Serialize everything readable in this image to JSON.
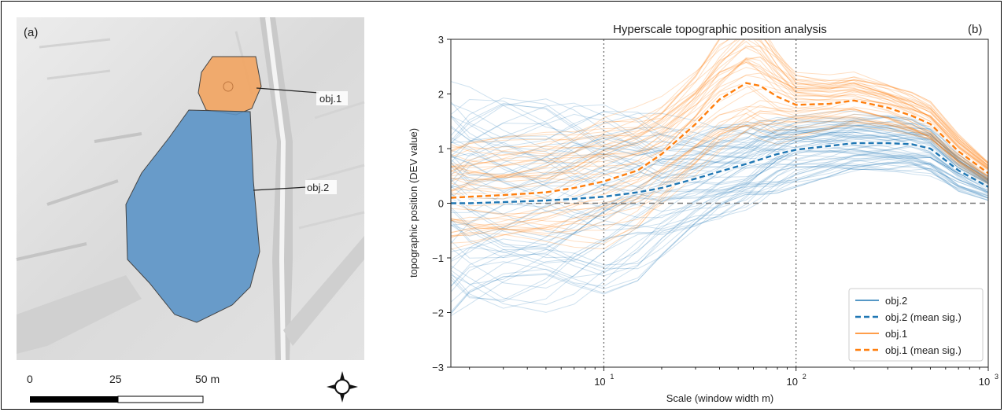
{
  "panel_a": {
    "label": "(a)",
    "objects": [
      {
        "label": "obj.1",
        "color": "#f2a460"
      },
      {
        "label": "obj.2",
        "color": "#5b94c6"
      }
    ],
    "scale_bar": {
      "ticks": [
        "0",
        "25",
        "50 m"
      ]
    },
    "icon": "compass-rose-icon"
  },
  "panel_b": {
    "label": "(b)",
    "chart_data": {
      "type": "line",
      "title": "Hyperscale topographic position analysis",
      "xlabel": "Scale (window width m)",
      "ylabel": "topographic position (DEV value)",
      "xscale": "log",
      "xlim": [
        1.6,
        1000
      ],
      "ylim": [
        -3,
        3
      ],
      "x_ticks": [
        {
          "base": "10",
          "exp": "1",
          "value": 10
        },
        {
          "base": "10",
          "exp": "2",
          "value": 100
        },
        {
          "base": "10",
          "exp": "3",
          "value": 1000
        }
      ],
      "y_ticks": [
        "3",
        "2",
        "1",
        "0",
        "−1",
        "−2",
        "−3"
      ],
      "grid": "vertical dotted at 10 and 100; horizontal dashed at 0",
      "x": [
        1.6,
        2,
        3,
        5,
        7,
        10,
        15,
        20,
        30,
        40,
        55,
        65,
        80,
        100,
        150,
        200,
        300,
        400,
        500,
        700,
        1000
      ],
      "series": [
        {
          "name": "obj.2 (mean sig.)",
          "color": "#1f77b4",
          "values": [
            0.0,
            0.0,
            0.02,
            0.05,
            0.08,
            0.12,
            0.2,
            0.28,
            0.45,
            0.58,
            0.72,
            0.8,
            0.9,
            0.98,
            1.05,
            1.1,
            1.1,
            1.08,
            1.0,
            0.6,
            0.3
          ]
        },
        {
          "name": "obj.1 (mean sig.)",
          "color": "#ff7f0e",
          "values": [
            0.1,
            0.12,
            0.15,
            0.2,
            0.28,
            0.4,
            0.6,
            0.9,
            1.45,
            1.9,
            2.2,
            2.15,
            1.95,
            1.8,
            1.82,
            1.88,
            1.75,
            1.6,
            1.45,
            0.95,
            0.55
          ]
        }
      ],
      "legend": {
        "position": "lower right",
        "entries": [
          {
            "label": "obj.2",
            "style": "solid",
            "color": "#1f77b4"
          },
          {
            "label": "obj.2 (mean sig.)",
            "style": "dashed",
            "color": "#1f77b4"
          },
          {
            "label": "obj.1",
            "style": "solid",
            "color": "#ff7f0e"
          },
          {
            "label": "obj.1 (mean sig.)",
            "style": "dashed",
            "color": "#ff7f0e"
          }
        ]
      }
    }
  }
}
